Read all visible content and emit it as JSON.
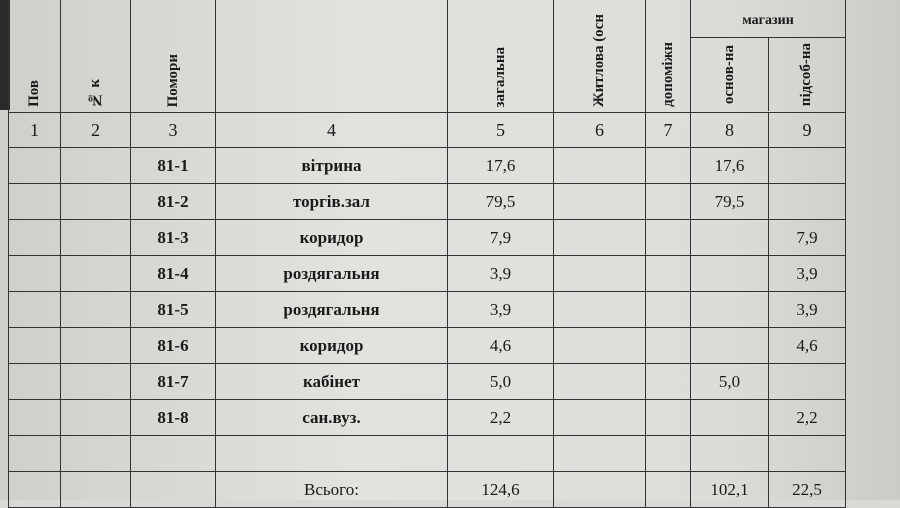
{
  "headers": {
    "c1": "Пов",
    "c2": "№ к",
    "c3": "Помори",
    "c5": "загальна",
    "c6": "Житлова (осн",
    "c7": "допоміжн",
    "group": "магазин",
    "c8": "основ-на",
    "c9": "підсоб-на"
  },
  "col_numbers": [
    "1",
    "2",
    "3",
    "4",
    "5",
    "6",
    "7",
    "8",
    "9"
  ],
  "rows": [
    {
      "room": "81-1",
      "name": "вітрина",
      "total": "17,6",
      "main": "17,6",
      "aux": ""
    },
    {
      "room": "81-2",
      "name": "торгів.зал",
      "total": "79,5",
      "main": "79,5",
      "aux": ""
    },
    {
      "room": "81-3",
      "name": "коридор",
      "total": "7,9",
      "main": "",
      "aux": "7,9"
    },
    {
      "room": "81-4",
      "name": "роздягальня",
      "total": "3,9",
      "main": "",
      "aux": "3,9"
    },
    {
      "room": "81-5",
      "name": "роздягальня",
      "total": "3,9",
      "main": "",
      "aux": "3,9"
    },
    {
      "room": "81-6",
      "name": "коридор",
      "total": "4,6",
      "main": "",
      "aux": "4,6"
    },
    {
      "room": "81-7",
      "name": "кабінет",
      "total": "5,0",
      "main": "5,0",
      "aux": ""
    },
    {
      "room": "81-8",
      "name": "сан.вуз.",
      "total": "2,2",
      "main": "",
      "aux": "2,2"
    }
  ],
  "totals": {
    "label": "Всього:",
    "total": "124,6",
    "main": "102,1",
    "aux": "22,5"
  }
}
